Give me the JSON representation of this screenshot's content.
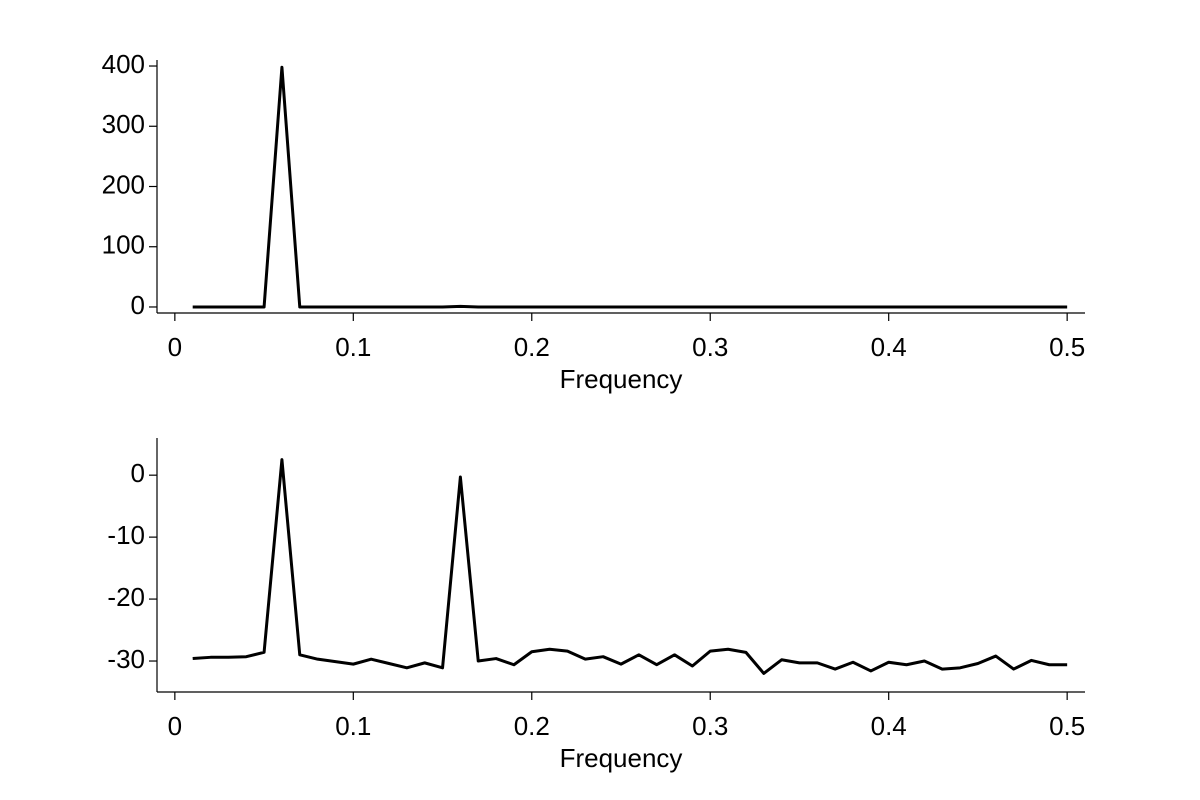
{
  "chart_data": [
    {
      "type": "line",
      "xlabel": "Frequency",
      "x": [
        0.01,
        0.02,
        0.03,
        0.04,
        0.05,
        0.06,
        0.07,
        0.08,
        0.09,
        0.1,
        0.11,
        0.12,
        0.13,
        0.14,
        0.15,
        0.16,
        0.17,
        0.18,
        0.19,
        0.2,
        0.21,
        0.22,
        0.23,
        0.24,
        0.25,
        0.26,
        0.27,
        0.28,
        0.29,
        0.3,
        0.31,
        0.32,
        0.33,
        0.34,
        0.35,
        0.36,
        0.37,
        0.38,
        0.39,
        0.4,
        0.41,
        0.42,
        0.43,
        0.44,
        0.45,
        0.46,
        0.47,
        0.48,
        0.49,
        0.5
      ],
      "values": [
        0,
        0,
        0,
        0,
        0,
        398,
        0,
        0,
        0,
        0,
        0,
        0,
        0,
        0,
        0,
        1,
        0,
        0,
        0,
        0,
        0,
        0,
        0,
        0,
        0,
        0,
        0,
        0,
        0,
        0,
        0,
        0,
        0,
        0,
        0,
        0,
        0,
        0,
        0,
        0,
        0,
        0,
        0,
        0,
        0,
        0,
        0,
        0,
        0,
        0
      ],
      "color": "#000000",
      "xlim": [
        -0.01,
        0.51
      ],
      "xticks": [
        0,
        0.1,
        0.2,
        0.3,
        0.4,
        0.5
      ],
      "ylim": [
        -10,
        410
      ],
      "yticks": [
        0,
        100,
        200,
        300,
        400
      ]
    },
    {
      "type": "line",
      "xlabel": "Frequency",
      "x": [
        0.01,
        0.02,
        0.03,
        0.04,
        0.05,
        0.06,
        0.07,
        0.08,
        0.09,
        0.1,
        0.11,
        0.12,
        0.13,
        0.14,
        0.15,
        0.16,
        0.17,
        0.18,
        0.19,
        0.2,
        0.21,
        0.22,
        0.23,
        0.24,
        0.25,
        0.26,
        0.27,
        0.28,
        0.29,
        0.3,
        0.31,
        0.32,
        0.33,
        0.34,
        0.35,
        0.36,
        0.37,
        0.38,
        0.39,
        0.4,
        0.41,
        0.42,
        0.43,
        0.44,
        0.45,
        0.46,
        0.47,
        0.48,
        0.49,
        0.5
      ],
      "values": [
        -29.6,
        -29.4,
        -29.4,
        -29.3,
        -28.6,
        2.5,
        -29.0,
        -29.7,
        -30.1,
        -30.5,
        -29.7,
        -30.4,
        -31.1,
        -30.3,
        -31.1,
        -0.3,
        -30.0,
        -29.6,
        -30.6,
        -28.5,
        -28.1,
        -28.4,
        -29.7,
        -29.3,
        -30.5,
        -29.0,
        -30.6,
        -29.0,
        -30.8,
        -28.4,
        -28.1,
        -28.6,
        -32.0,
        -29.8,
        -30.3,
        -30.3,
        -31.3,
        -30.2,
        -31.6,
        -30.2,
        -30.6,
        -30.0,
        -31.3,
        -31.1,
        -30.4,
        -29.2,
        -31.3,
        -29.9,
        -30.6,
        -30.6
      ],
      "color": "#000000",
      "xlim": [
        -0.01,
        0.51
      ],
      "xticks": [
        0,
        0.1,
        0.2,
        0.3,
        0.4,
        0.5
      ],
      "ylim": [
        -35,
        6
      ],
      "yticks": [
        0,
        -10,
        -20,
        -30
      ]
    }
  ]
}
